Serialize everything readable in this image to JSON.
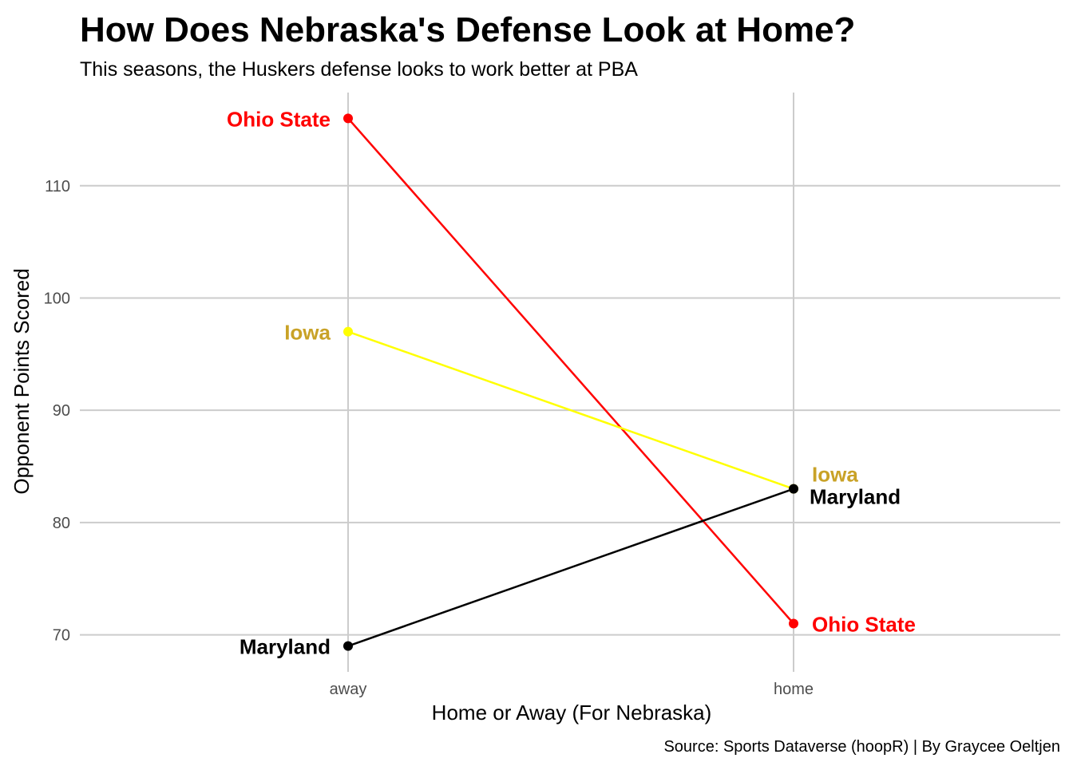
{
  "chart_data": {
    "type": "line",
    "title": "How Does Nebraska's Defense Look at Home?",
    "subtitle": "This seasons, the Huskers defense looks to work better at PBA",
    "xlabel": "Home or Away (For Nebraska)",
    "ylabel": "Opponent Points Scored",
    "caption": "Source: Sports Dataverse (hoopR) | By Graycee Oeltjen",
    "categories": [
      "away",
      "home"
    ],
    "ylim": [
      66.7,
      118.3
    ],
    "yticks": [
      70,
      80,
      90,
      100,
      110
    ],
    "grid": true,
    "legend": "none",
    "series": [
      {
        "name": "Ohio State",
        "values": [
          116,
          71
        ],
        "line_color": "#ff0000",
        "label_color": "#ff0000"
      },
      {
        "name": "Iowa",
        "values": [
          97,
          83
        ],
        "line_color": "#ffff00",
        "label_color": "#c9a227"
      },
      {
        "name": "Maryland",
        "values": [
          69,
          83
        ],
        "line_color": "#000000",
        "label_color": "#000000"
      }
    ]
  }
}
